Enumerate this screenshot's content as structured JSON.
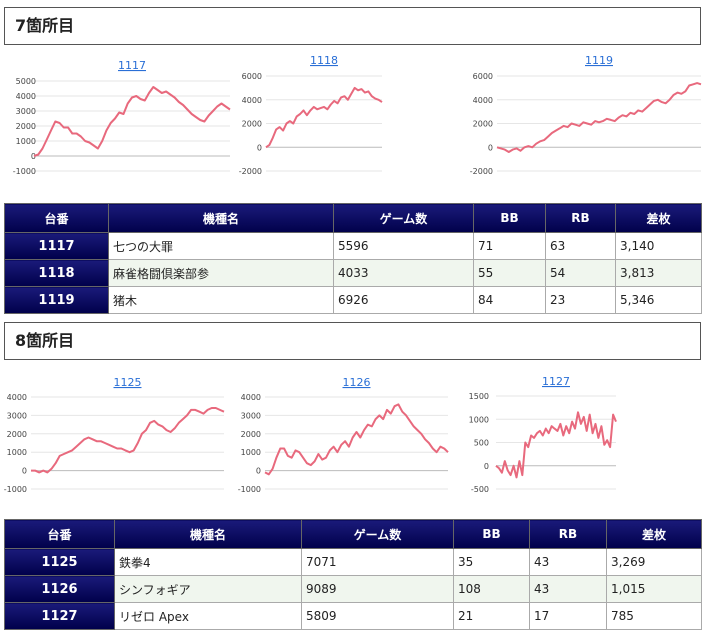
{
  "sections": [
    {
      "title": "7箇所目",
      "headers": [
        "台番",
        "機種名",
        "ゲーム数",
        "BB",
        "RB",
        "差枚"
      ],
      "rows": [
        {
          "id": "1117",
          "name": "七つの大罪",
          "games": "5596",
          "bb": "71",
          "rb": "63",
          "diff": "3,140"
        },
        {
          "id": "1118",
          "name": "麻雀格闘倶楽部参",
          "games": "4033",
          "bb": "55",
          "rb": "54",
          "diff": "3,813"
        },
        {
          "id": "1119",
          "name": "猪木",
          "games": "6926",
          "bb": "84",
          "rb": "23",
          "diff": "5,346"
        }
      ]
    },
    {
      "title": "8箇所目",
      "headers": [
        "台番",
        "機種名",
        "ゲーム数",
        "BB",
        "RB",
        "差枚"
      ],
      "rows": [
        {
          "id": "1125",
          "name": "鉄拳4",
          "games": "7071",
          "bb": "35",
          "rb": "43",
          "diff": "3,269"
        },
        {
          "id": "1126",
          "name": "シンフォギア",
          "games": "9089",
          "bb": "108",
          "rb": "43",
          "diff": "1,015"
        },
        {
          "id": "1127",
          "name": "リゼロ Apex",
          "games": "5809",
          "bb": "21",
          "rb": "17",
          "diff": "785"
        }
      ]
    }
  ],
  "chart_data": [
    {
      "type": "line",
      "title": "1117",
      "yticks": [
        5000,
        4000,
        3000,
        2000,
        1000,
        0,
        -1000
      ],
      "ylim": [
        -1000,
        5000
      ],
      "color": "#e8697d",
      "values": [
        0,
        100,
        500,
        1100,
        1700,
        2300,
        2200,
        1900,
        1900,
        1500,
        1500,
        1300,
        1000,
        900,
        700,
        500,
        1000,
        1700,
        2200,
        2500,
        2900,
        2800,
        3500,
        3900,
        4000,
        3800,
        3700,
        4200,
        4600,
        4400,
        4200,
        4300,
        4100,
        3900,
        3600,
        3400,
        3100,
        2800,
        2600,
        2400,
        2300,
        2700,
        3000,
        3300,
        3500,
        3300,
        3100
      ]
    },
    {
      "type": "line",
      "title": "1118",
      "yticks": [
        6000,
        4000,
        2000,
        0,
        -2000
      ],
      "ylim": [
        -2000,
        6000
      ],
      "color": "#e8697d",
      "values": [
        0,
        200,
        800,
        1500,
        1700,
        1400,
        2000,
        2200,
        2000,
        2600,
        2800,
        3100,
        2700,
        3100,
        3400,
        3200,
        3300,
        3400,
        3200,
        3600,
        3900,
        3700,
        4200,
        4300,
        4000,
        4500,
        5000,
        4800,
        4900,
        4600,
        4700,
        4300,
        4100,
        4000,
        3800
      ]
    },
    {
      "type": "line",
      "title": "1119",
      "yticks": [
        6000,
        4000,
        2000,
        0,
        -2000
      ],
      "ylim": [
        -2000,
        6000
      ],
      "color": "#e8697d",
      "values": [
        0,
        -100,
        -200,
        -400,
        -200,
        -100,
        -300,
        0,
        100,
        0,
        300,
        500,
        600,
        900,
        1200,
        1400,
        1600,
        1800,
        1700,
        2000,
        1900,
        1800,
        2100,
        2000,
        1900,
        2200,
        2100,
        2200,
        2400,
        2300,
        2200,
        2500,
        2700,
        2600,
        2900,
        2800,
        3100,
        3000,
        3300,
        3600,
        3900,
        4000,
        3800,
        3700,
        4000,
        4400,
        4600,
        4500,
        4700,
        5200,
        5300,
        5400,
        5300
      ]
    },
    {
      "type": "line",
      "title": "1125",
      "yticks": [
        4000,
        3000,
        2000,
        1000,
        0,
        -1000
      ],
      "ylim": [
        -1000,
        4000
      ],
      "color": "#e8697d",
      "values": [
        0,
        0,
        -100,
        0,
        -100,
        100,
        400,
        800,
        900,
        1000,
        1100,
        1300,
        1500,
        1700,
        1800,
        1700,
        1600,
        1600,
        1500,
        1400,
        1300,
        1200,
        1200,
        1100,
        1000,
        1100,
        1500,
        2000,
        2200,
        2600,
        2700,
        2500,
        2400,
        2200,
        2100,
        2300,
        2600,
        2800,
        3000,
        3300,
        3300,
        3200,
        3100,
        3300,
        3400,
        3400,
        3300,
        3200
      ]
    },
    {
      "type": "line",
      "title": "1126",
      "yticks": [
        4000,
        3000,
        2000,
        1000,
        0,
        -1000
      ],
      "ylim": [
        -1000,
        4000
      ],
      "color": "#e8697d",
      "values": [
        -100,
        -200,
        100,
        700,
        1200,
        1200,
        800,
        700,
        1100,
        1000,
        700,
        400,
        300,
        500,
        900,
        600,
        700,
        1100,
        1300,
        1000,
        1400,
        1600,
        1300,
        1800,
        2100,
        1800,
        2200,
        2500,
        2400,
        2800,
        3000,
        2800,
        3300,
        3100,
        3500,
        3600,
        3200,
        3000,
        2700,
        2400,
        2200,
        2000,
        1700,
        1500,
        1200,
        1000,
        1300,
        1200,
        1000
      ]
    },
    {
      "type": "line",
      "title": "1127",
      "yticks": [
        1500,
        1000,
        500,
        0,
        -500
      ],
      "ylim": [
        -500,
        1500
      ],
      "color": "#e8697d",
      "values": [
        0,
        -50,
        -150,
        100,
        -100,
        -200,
        0,
        -250,
        100,
        -200,
        500,
        400,
        650,
        600,
        700,
        750,
        650,
        800,
        700,
        850,
        800,
        750,
        900,
        650,
        850,
        700,
        950,
        800,
        1150,
        900,
        1050,
        750,
        1100,
        700,
        900,
        600,
        850,
        450,
        550,
        400,
        1100,
        950
      ]
    }
  ]
}
